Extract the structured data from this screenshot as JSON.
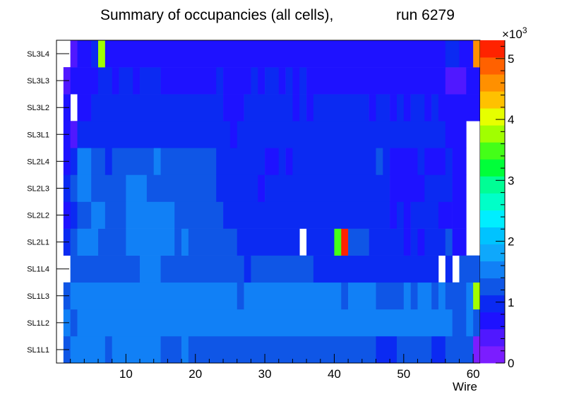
{
  "chart_data": {
    "type": "heatmap",
    "title": "Summary of occupancies (all cells),",
    "run_label": "run 6279",
    "xlabel": "Wire",
    "ylabel": "",
    "x_range": [
      0,
      61
    ],
    "x_ticks": [
      10,
      20,
      30,
      40,
      50,
      60
    ],
    "rows": [
      "SL1L1",
      "SL1L2",
      "SL1L3",
      "SL1L4",
      "SL2L1",
      "SL2L2",
      "SL2L3",
      "SL2L4",
      "SL3L1",
      "SL3L2",
      "SL3L3",
      "SL3L4"
    ],
    "color_scale": {
      "min": 0,
      "max": 5300,
      "multiplier_label": "×10",
      "multiplier_exponent": "3",
      "tick_values": [
        0,
        1,
        2,
        3,
        4,
        5
      ],
      "colors": [
        "#7b1dff",
        "#5018ff",
        "#1e12ff",
        "#0b2af2",
        "#0f56e6",
        "#1180f6",
        "#0fa8fb",
        "#00c3ff",
        "#00eeff",
        "#00ffc8",
        "#00fe95",
        "#00ff39",
        "#44ff18",
        "#a1ff00",
        "#e6ff00",
        "#ffc100",
        "#ff9000",
        "#ff6100",
        "#ff2300"
      ]
    },
    "segments": {
      "SL1L1": [
        [
          1,
          1,
          1180
        ],
        [
          2,
          6,
          1460
        ],
        [
          7,
          7,
          1230
        ],
        [
          8,
          14,
          1460
        ],
        [
          15,
          17,
          1230
        ],
        [
          18,
          18,
          1460
        ],
        [
          19,
          45,
          1230
        ],
        [
          46,
          48,
          920
        ],
        [
          49,
          53,
          1230
        ],
        [
          54,
          55,
          920
        ],
        [
          56,
          59,
          1230
        ],
        [
          60,
          60,
          0
        ]
      ],
      "SL1L2": [
        [
          1,
          1,
          1460
        ],
        [
          2,
          2,
          1180
        ],
        [
          3,
          56,
          1460
        ],
        [
          57,
          58,
          1230
        ],
        [
          59,
          59,
          1460
        ],
        [
          60,
          60,
          1230
        ]
      ],
      "SL1L3": [
        [
          1,
          1,
          1180
        ],
        [
          2,
          25,
          1460
        ],
        [
          26,
          26,
          1230
        ],
        [
          27,
          40,
          1460
        ],
        [
          41,
          41,
          1230
        ],
        [
          42,
          45,
          1460
        ],
        [
          46,
          49,
          1230
        ],
        [
          50,
          50,
          1460
        ],
        [
          51,
          51,
          1230
        ],
        [
          52,
          53,
          1460
        ],
        [
          54,
          54,
          1230
        ],
        [
          55,
          55,
          1460
        ],
        [
          56,
          58,
          1230
        ],
        [
          59,
          59,
          1460
        ],
        [
          60,
          60,
          3850
        ]
      ],
      "SL1L4": [
        [
          1,
          1,
          null
        ],
        [
          2,
          11,
          1230
        ],
        [
          12,
          14,
          1460
        ],
        [
          15,
          26,
          1230
        ],
        [
          27,
          27,
          920
        ],
        [
          28,
          36,
          1230
        ],
        [
          37,
          54,
          920
        ],
        [
          55,
          55,
          null
        ],
        [
          56,
          56,
          920
        ],
        [
          57,
          57,
          null
        ],
        [
          58,
          60,
          1230
        ]
      ],
      "SL2L1": [
        [
          1,
          1,
          920
        ],
        [
          2,
          2,
          1230
        ],
        [
          3,
          5,
          1460
        ],
        [
          6,
          9,
          1230
        ],
        [
          10,
          16,
          1460
        ],
        [
          17,
          17,
          1230
        ],
        [
          18,
          18,
          1460
        ],
        [
          19,
          25,
          1230
        ],
        [
          26,
          34,
          920
        ],
        [
          35,
          35,
          null
        ],
        [
          36,
          39,
          920
        ],
        [
          40,
          40,
          3550
        ],
        [
          41,
          41,
          5200
        ],
        [
          42,
          44,
          1230
        ],
        [
          45,
          49,
          920
        ],
        [
          50,
          50,
          680
        ],
        [
          51,
          51,
          920
        ],
        [
          52,
          52,
          680
        ],
        [
          53,
          55,
          920
        ],
        [
          56,
          56,
          1230
        ],
        [
          57,
          58,
          680
        ],
        [
          59,
          60,
          null
        ]
      ],
      "SL2L2": [
        [
          1,
          1,
          680
        ],
        [
          2,
          2,
          920
        ],
        [
          3,
          4,
          1230
        ],
        [
          5,
          6,
          1460
        ],
        [
          7,
          9,
          1230
        ],
        [
          10,
          16,
          1460
        ],
        [
          17,
          23,
          1230
        ],
        [
          24,
          47,
          920
        ],
        [
          48,
          48,
          680
        ],
        [
          49,
          49,
          920
        ],
        [
          50,
          50,
          680
        ],
        [
          51,
          54,
          920
        ],
        [
          55,
          56,
          680
        ],
        [
          57,
          58,
          680
        ],
        [
          59,
          60,
          null
        ]
      ],
      "SL2L3": [
        [
          1,
          1,
          920
        ],
        [
          2,
          2,
          1230
        ],
        [
          3,
          4,
          1460
        ],
        [
          5,
          9,
          1230
        ],
        [
          10,
          12,
          1460
        ],
        [
          13,
          22,
          1230
        ],
        [
          23,
          28,
          920
        ],
        [
          29,
          29,
          680
        ],
        [
          30,
          47,
          920
        ],
        [
          48,
          52,
          680
        ],
        [
          53,
          56,
          920
        ],
        [
          57,
          58,
          680
        ],
        [
          59,
          60,
          null
        ]
      ],
      "SL2L4": [
        [
          1,
          1,
          680
        ],
        [
          2,
          2,
          920
        ],
        [
          3,
          4,
          1460
        ],
        [
          5,
          6,
          1230
        ],
        [
          7,
          7,
          920
        ],
        [
          8,
          13,
          1230
        ],
        [
          14,
          14,
          1460
        ],
        [
          15,
          22,
          1230
        ],
        [
          23,
          29,
          920
        ],
        [
          30,
          31,
          680
        ],
        [
          32,
          32,
          920
        ],
        [
          33,
          33,
          680
        ],
        [
          34,
          45,
          920
        ],
        [
          46,
          46,
          1230
        ],
        [
          47,
          47,
          920
        ],
        [
          48,
          51,
          680
        ],
        [
          52,
          52,
          920
        ],
        [
          53,
          55,
          680
        ],
        [
          56,
          56,
          920
        ],
        [
          57,
          58,
          680
        ],
        [
          59,
          60,
          null
        ]
      ],
      "SL3L1": [
        [
          1,
          1,
          680
        ],
        [
          2,
          2,
          440
        ],
        [
          3,
          24,
          920
        ],
        [
          25,
          25,
          680
        ],
        [
          26,
          55,
          920
        ],
        [
          56,
          58,
          680
        ],
        [
          59,
          60,
          null
        ]
      ],
      "SL3L2": [
        [
          1,
          1,
          680
        ],
        [
          2,
          2,
          null
        ],
        [
          3,
          4,
          680
        ],
        [
          5,
          23,
          920
        ],
        [
          24,
          26,
          680
        ],
        [
          27,
          33,
          920
        ],
        [
          34,
          34,
          680
        ],
        [
          35,
          35,
          920
        ],
        [
          36,
          36,
          680
        ],
        [
          37,
          44,
          920
        ],
        [
          45,
          45,
          680
        ],
        [
          46,
          47,
          920
        ],
        [
          48,
          48,
          680
        ],
        [
          49,
          49,
          920
        ],
        [
          50,
          50,
          680
        ],
        [
          51,
          52,
          920
        ],
        [
          53,
          53,
          680
        ],
        [
          54,
          54,
          920
        ],
        [
          55,
          60,
          680
        ]
      ],
      "SL3L3": [
        [
          1,
          1,
          440
        ],
        [
          2,
          5,
          680
        ],
        [
          6,
          7,
          920
        ],
        [
          8,
          8,
          680
        ],
        [
          9,
          10,
          920
        ],
        [
          11,
          11,
          680
        ],
        [
          12,
          14,
          920
        ],
        [
          15,
          22,
          680
        ],
        [
          23,
          23,
          920
        ],
        [
          24,
          27,
          680
        ],
        [
          28,
          28,
          920
        ],
        [
          29,
          29,
          680
        ],
        [
          30,
          31,
          920
        ],
        [
          32,
          32,
          680
        ],
        [
          33,
          33,
          920
        ],
        [
          34,
          34,
          680
        ],
        [
          35,
          35,
          920
        ],
        [
          36,
          55,
          680
        ],
        [
          56,
          58,
          440
        ],
        [
          59,
          60,
          680
        ]
      ],
      "SL3L4": [
        [
          1,
          1,
          null
        ],
        [
          2,
          2,
          440
        ],
        [
          3,
          4,
          680
        ],
        [
          5,
          5,
          920
        ],
        [
          6,
          6,
          3850
        ],
        [
          7,
          55,
          680
        ],
        [
          56,
          57,
          920
        ],
        [
          58,
          59,
          680
        ],
        [
          60,
          60,
          4600
        ]
      ]
    }
  }
}
